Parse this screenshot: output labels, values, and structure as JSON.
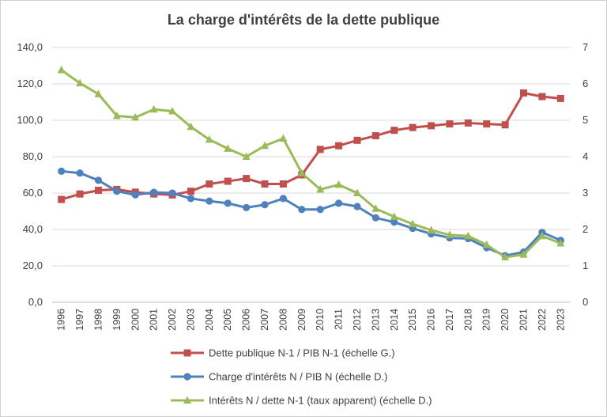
{
  "chart_data": {
    "type": "line",
    "title": "La charge d'intérêts de la dette publique",
    "x": [
      "1996",
      "1997",
      "1998",
      "1999",
      "2000",
      "2001",
      "2002",
      "2003",
      "2004",
      "2005",
      "2006",
      "2007",
      "2008",
      "2009",
      "2010",
      "2011",
      "2012",
      "2013",
      "2014",
      "2015",
      "2016",
      "2017",
      "2018",
      "2019",
      "2020",
      "2021",
      "2022",
      "2023"
    ],
    "y_left": {
      "min": 0,
      "max": 140,
      "step": 20,
      "tick_labels": [
        "0,0",
        "20,0",
        "40,0",
        "60,0",
        "80,0",
        "100,0",
        "120,0",
        "140,0"
      ]
    },
    "y_right": {
      "min": 0,
      "max": 7,
      "step": 1,
      "tick_labels": [
        "0",
        "1",
        "2",
        "3",
        "4",
        "5",
        "6",
        "7"
      ]
    },
    "grid": true,
    "legend_position": "bottom",
    "series": [
      {
        "name": "Dette publique N-1 / PIB N-1 (échelle G.)",
        "axis": "left",
        "color": "#c0504d",
        "marker": "square",
        "values": [
          56.5,
          59.5,
          61.5,
          62.0,
          60.5,
          59.5,
          59.0,
          61.0,
          65.0,
          66.5,
          68.0,
          65.0,
          65.0,
          70.0,
          84.0,
          86.0,
          89.0,
          91.5,
          94.5,
          96.0,
          97.0,
          98.0,
          98.5,
          98.0,
          97.5,
          115.0,
          113.0,
          112.0
        ]
      },
      {
        "name": "Charge d'intérêts N / PIB N (échelle D.)",
        "axis": "right",
        "color": "#4f81bd",
        "marker": "circle",
        "values": [
          3.6,
          3.55,
          3.35,
          3.05,
          2.95,
          3.02,
          3.0,
          2.85,
          2.78,
          2.72,
          2.6,
          2.68,
          2.85,
          2.55,
          2.55,
          2.72,
          2.63,
          2.32,
          2.2,
          2.03,
          1.88,
          1.77,
          1.75,
          1.5,
          1.28,
          1.38,
          1.92,
          1.7
        ]
      },
      {
        "name": "Intérêts N / dette N-1 (taux apparent) (échelle D.)",
        "axis": "right",
        "color": "#9bbb59",
        "marker": "triangle",
        "values": [
          6.38,
          6.02,
          5.72,
          5.12,
          5.08,
          5.3,
          5.25,
          4.82,
          4.47,
          4.22,
          4.0,
          4.3,
          4.5,
          3.55,
          3.1,
          3.23,
          3.0,
          2.57,
          2.35,
          2.15,
          1.98,
          1.85,
          1.82,
          1.58,
          1.24,
          1.31,
          1.82,
          1.62
        ]
      }
    ]
  }
}
